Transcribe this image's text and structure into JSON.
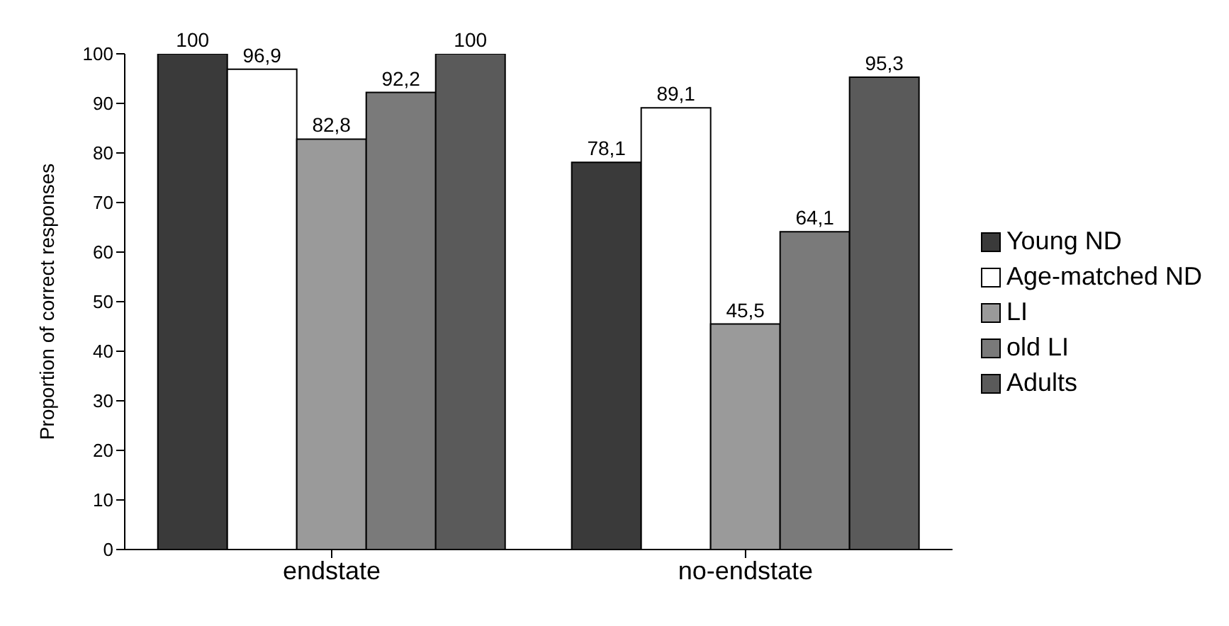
{
  "chart_data": {
    "type": "bar",
    "ylabel": "Proportion of correct responses",
    "categories": [
      "endstate",
      "no-endstate"
    ],
    "series": [
      {
        "name": "Young ND",
        "color": "#3a3a3a",
        "values": [
          100,
          78.1
        ],
        "value_labels": [
          "100",
          "78,1"
        ]
      },
      {
        "name": "Age-matched ND",
        "color": "#ffffff",
        "values": [
          96.9,
          89.1
        ],
        "value_labels": [
          "96,9",
          "89,1"
        ]
      },
      {
        "name": "LI",
        "color": "#9a9a9a",
        "values": [
          82.8,
          45.5
        ],
        "value_labels": [
          "82,8",
          "45,5"
        ]
      },
      {
        "name": "old LI",
        "color": "#7a7a7a",
        "values": [
          92.2,
          64.1
        ],
        "value_labels": [
          "92,2",
          "64,1"
        ]
      },
      {
        "name": "Adults",
        "color": "#5a5a5a",
        "values": [
          100,
          95.3
        ],
        "value_labels": [
          "100",
          "95,3"
        ]
      }
    ],
    "ylim": [
      0,
      100
    ],
    "yticks": [
      0,
      10,
      20,
      30,
      40,
      50,
      60,
      70,
      80,
      90,
      100
    ],
    "grid": false,
    "legend": "right"
  }
}
